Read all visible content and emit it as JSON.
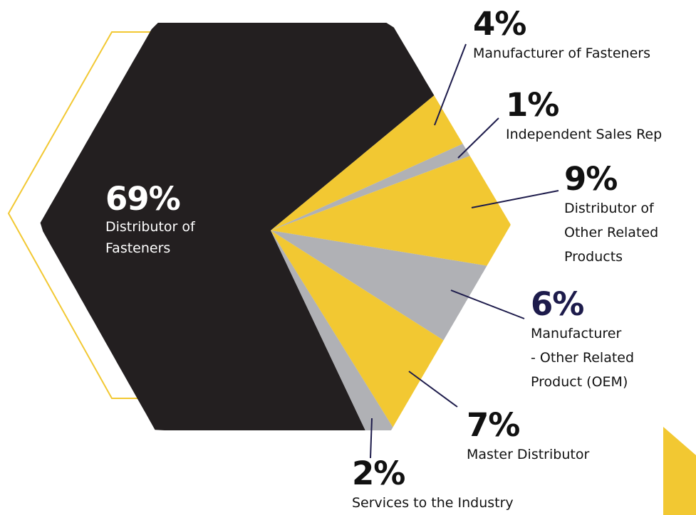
{
  "colors": {
    "main": "#231f20",
    "yellow": "#f2c832",
    "gray": "#b0b1b5",
    "leader": "#1d1b4b",
    "outline": "#f2c832"
  },
  "chart_data": {
    "type": "pie",
    "shape": "hexagon",
    "unit": "%",
    "slices": [
      {
        "value": 69,
        "pct": "69%",
        "label": "Distributor of\nFasteners",
        "color": "#231f20"
      },
      {
        "value": 4,
        "pct": "4%",
        "label": "Manufacturer of Fasteners",
        "color": "#f2c832"
      },
      {
        "value": 1,
        "pct": "1%",
        "label": "Independent Sales Rep",
        "color": "#b0b1b5"
      },
      {
        "value": 9,
        "pct": "9%",
        "label": "Distributor of\nOther Related\nProducts",
        "color": "#f2c832"
      },
      {
        "value": 6,
        "pct": "6%",
        "label": "Manufacturer\n- Other Related\nProduct (OEM)",
        "color": "#b0b1b5"
      },
      {
        "value": 7,
        "pct": "7%",
        "label": "Master Distributor",
        "color": "#f2c832"
      },
      {
        "value": 2,
        "pct": "2%",
        "label": "Services to the Industry",
        "color": "#b0b1b5"
      }
    ]
  }
}
